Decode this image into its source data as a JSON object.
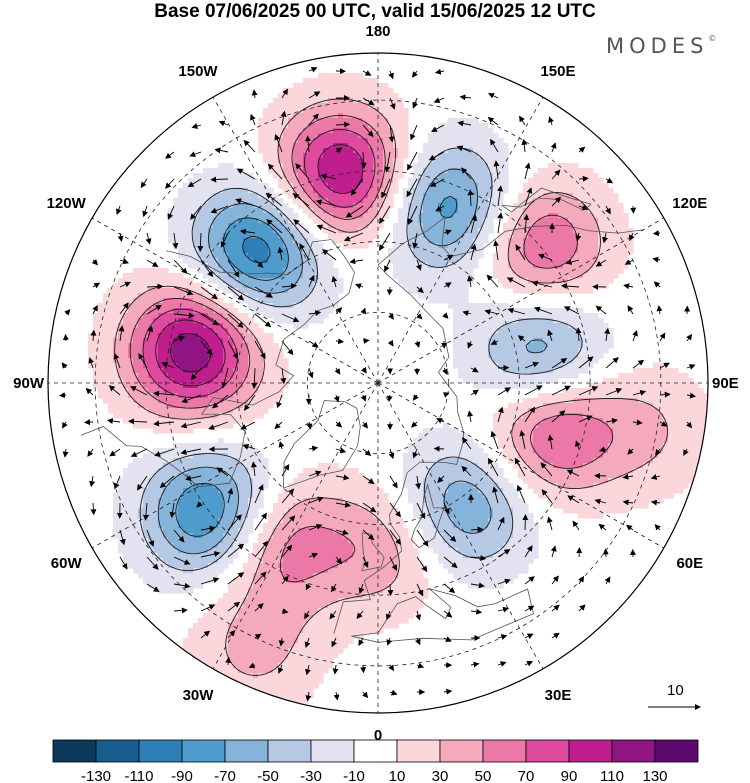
{
  "title": "Base 07/06/2025 00 UTC, valid 15/06/2025 12 UTC",
  "brand": "MODES",
  "brand_mark": "©",
  "longitude_labels": [
    "180",
    "150E",
    "120E",
    "90E",
    "60E",
    "30E",
    "0",
    "30W",
    "60W",
    "90W",
    "120W",
    "150W"
  ],
  "reference_vector_label": "10",
  "colorbar": {
    "colors": [
      "#0b3a5c",
      "#175e8e",
      "#2d7fb8",
      "#4e9ccc",
      "#86b3d9",
      "#b5c8e4",
      "#e2e2f0",
      "#ffffff",
      "#fbd7dc",
      "#f5a9bc",
      "#ec78a8",
      "#dd4a9e",
      "#c01e8e",
      "#911483",
      "#5d0a6e"
    ],
    "tick_labels": [
      "-130",
      "-110",
      "-90",
      "-70",
      "-50",
      "-30",
      "-10",
      "10",
      "30",
      "50",
      "70",
      "90",
      "110",
      "130"
    ]
  },
  "anomaly_centers": [
    {
      "lon": -100,
      "lat": 50,
      "value": 125
    },
    {
      "lon": -138,
      "lat": 52,
      "value": -105
    },
    {
      "lon": -170,
      "lat": 45,
      "value": 115
    },
    {
      "lon": 158,
      "lat": 50,
      "value": -85
    },
    {
      "lon": 130,
      "lat": 45,
      "value": 75
    },
    {
      "lon": 100,
      "lat": 55,
      "value": -75
    },
    {
      "lon": 75,
      "lat": 52,
      "value": 80
    },
    {
      "lon": 35,
      "lat": 58,
      "value": -70
    },
    {
      "lon": -52,
      "lat": 45,
      "value": -100
    },
    {
      "lon": -32,
      "lat": 50,
      "value": 65
    },
    {
      "lon": 2,
      "lat": 55,
      "value": 45
    },
    {
      "lon": -25,
      "lat": 28,
      "value": 35
    },
    {
      "lon": 80,
      "lat": 32,
      "value": 30
    }
  ]
}
